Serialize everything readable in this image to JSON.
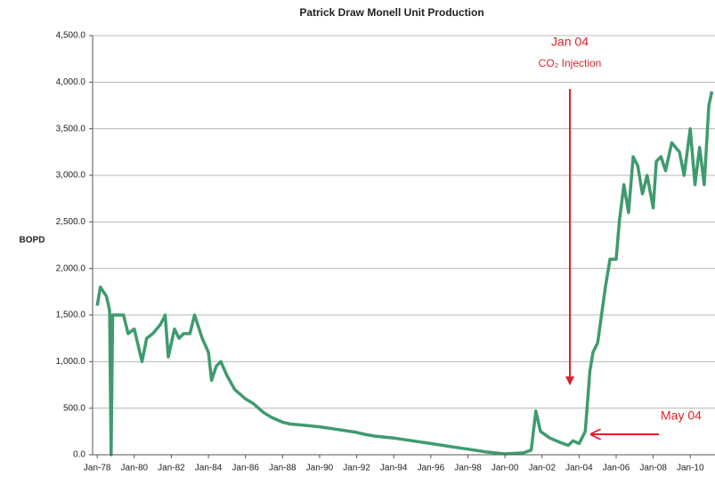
{
  "chart_data": {
    "type": "line",
    "title": "Patrick Draw Monell Unit Production",
    "y_label": "BOPD",
    "annotations": [
      "Jan 04",
      "CO₂ Injection",
      "May 04"
    ],
    "x": [
      "1978-01",
      "1978-03",
      "1978-07",
      "1978-09",
      "1978-10",
      "1978-11",
      "1979-06",
      "1979-09",
      "1980-01",
      "1980-06",
      "1980-09",
      "1981-01",
      "1981-06",
      "1981-09",
      "1981-11",
      "1982-03",
      "1982-06",
      "1982-09",
      "1983-01",
      "1983-04",
      "1983-09",
      "1984-01",
      "1984-03",
      "1984-06",
      "1984-09",
      "1985-01",
      "1985-06",
      "1986-01",
      "1986-06",
      "1987-01",
      "1987-06",
      "1988-01",
      "1988-06",
      "1989-01",
      "1990-01",
      "1991-01",
      "1992-01",
      "1992-06",
      "1993-01",
      "1994-01",
      "1995-01",
      "1996-01",
      "1997-01",
      "1998-01",
      "1999-01",
      "2000-01",
      "2001-01",
      "2001-06",
      "2001-09",
      "2001-12",
      "2002-06",
      "2003-01",
      "2003-06",
      "2003-09",
      "2004-01",
      "2004-05",
      "2004-08",
      "2004-10",
      "2005-01",
      "2005-06",
      "2005-09",
      "2006-01",
      "2006-03",
      "2006-06",
      "2006-09",
      "2006-12",
      "2007-03",
      "2007-06",
      "2007-09",
      "2008-01",
      "2008-03",
      "2008-06",
      "2008-09",
      "2009-01",
      "2009-06",
      "2009-09",
      "2010-01",
      "2010-04",
      "2010-07",
      "2010-10",
      "2011-01",
      "2011-03"
    ],
    "series": [
      {
        "name": "BOPD",
        "color": "#3f9b6e",
        "values": [
          1600,
          1800,
          1700,
          1550,
          0,
          1500,
          1500,
          1300,
          1350,
          1000,
          1250,
          1300,
          1400,
          1500,
          1050,
          1350,
          1250,
          1300,
          1300,
          1500,
          1250,
          1100,
          800,
          950,
          1000,
          850,
          700,
          600,
          550,
          450,
          400,
          350,
          330,
          320,
          300,
          270,
          240,
          220,
          200,
          180,
          150,
          120,
          90,
          60,
          30,
          10,
          20,
          50,
          470,
          250,
          180,
          130,
          100,
          150,
          120,
          250,
          900,
          1100,
          1200,
          1800,
          2100,
          2100,
          2500,
          2900,
          2600,
          3200,
          3100,
          2800,
          3000,
          2650,
          3150,
          3200,
          3050,
          3350,
          3250,
          3000,
          3500,
          2900,
          3300,
          2900,
          3750,
          3900
        ]
      }
    ],
    "xlim": [
      "1977-10",
      "2011-05"
    ],
    "xticks": [
      {
        "value": "1978-01",
        "label": "Jan-78"
      },
      {
        "value": "1980-01",
        "label": "Jan-80"
      },
      {
        "value": "1982-01",
        "label": "Jan-82"
      },
      {
        "value": "1984-01",
        "label": "Jan-84"
      },
      {
        "value": "1986-01",
        "label": "Jan-86"
      },
      {
        "value": "1988-01",
        "label": "Jan-88"
      },
      {
        "value": "1990-01",
        "label": "Jan-90"
      },
      {
        "value": "1992-01",
        "label": "Jan-92"
      },
      {
        "value": "1994-01",
        "label": "Jan-94"
      },
      {
        "value": "1996-01",
        "label": "Jan-96"
      },
      {
        "value": "1998-01",
        "label": "Jan-98"
      },
      {
        "value": "2000-01",
        "label": "Jan-00"
      },
      {
        "value": "2002-01",
        "label": "Jan-02"
      },
      {
        "value": "2004-01",
        "label": "Jan-04"
      },
      {
        "value": "2006-01",
        "label": "Jan-06"
      },
      {
        "value": "2008-01",
        "label": "Jan-08"
      },
      {
        "value": "2010-01",
        "label": "Jan-10"
      }
    ],
    "ylim": [
      0,
      4500
    ],
    "yticks": [
      {
        "value": 0,
        "label": "0.0"
      },
      {
        "value": 500,
        "label": "500.0"
      },
      {
        "value": 1000,
        "label": "1,000.0"
      },
      {
        "value": 1500,
        "label": "1,500.0"
      },
      {
        "value": 2000,
        "label": "2,000.0"
      },
      {
        "value": 2500,
        "label": "2,500.0"
      },
      {
        "value": 3000,
        "label": "3,000.0"
      },
      {
        "value": 3500,
        "label": "3,500.0"
      },
      {
        "value": 4000,
        "label": "4,000.0"
      },
      {
        "value": 4500,
        "label": "4,500.0"
      }
    ],
    "grid": true
  }
}
